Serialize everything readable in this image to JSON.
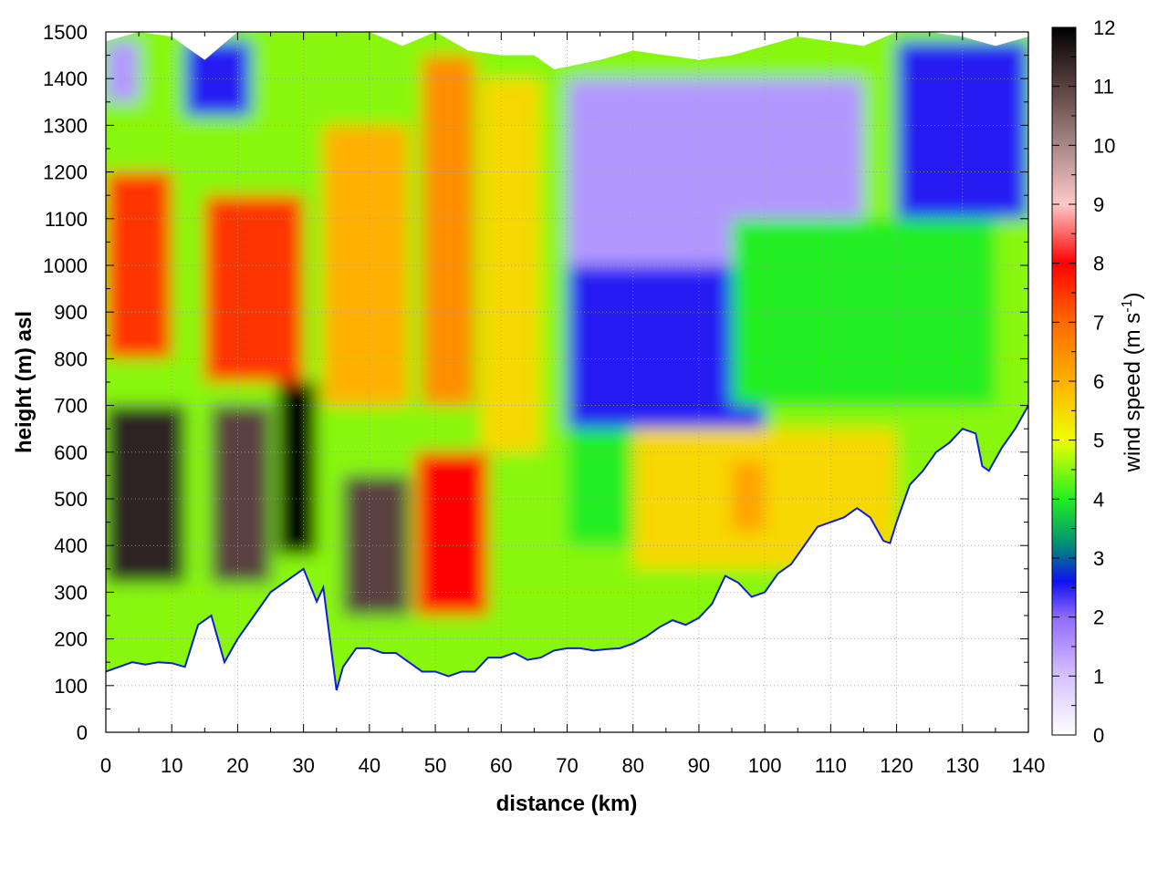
{
  "chart_data": {
    "type": "heatmap",
    "title": "",
    "xlabel": "distance (km)",
    "ylabel": "height (m) asl",
    "xlim": [
      0,
      140
    ],
    "ylim": [
      0,
      1500
    ],
    "x_ticks": [
      0,
      10,
      20,
      30,
      40,
      50,
      60,
      70,
      80,
      90,
      100,
      110,
      120,
      130,
      140
    ],
    "y_ticks": [
      0,
      100,
      200,
      300,
      400,
      500,
      600,
      700,
      800,
      900,
      1000,
      1100,
      1200,
      1300,
      1400,
      1500
    ],
    "grid": true,
    "colorbar": {
      "label": "wind speed (m s",
      "label_exponent": "-1",
      "label_suffix": ")",
      "range": [
        0,
        12
      ],
      "ticks": [
        0,
        1,
        2,
        3,
        4,
        5,
        6,
        7,
        8,
        9,
        10,
        11,
        12
      ],
      "palette": [
        {
          "value": 0,
          "color": "#ffffff"
        },
        {
          "value": 1,
          "color": "#d6c2ff"
        },
        {
          "value": 2,
          "color": "#8f6bff"
        },
        {
          "value": 2.6,
          "color": "#1010f0"
        },
        {
          "value": 3.2,
          "color": "#008a7a"
        },
        {
          "value": 4,
          "color": "#22ee22"
        },
        {
          "value": 5,
          "color": "#eeff00"
        },
        {
          "value": 6,
          "color": "#ffb000"
        },
        {
          "value": 7,
          "color": "#ff6a00"
        },
        {
          "value": 8,
          "color": "#ff0000"
        },
        {
          "value": 9,
          "color": "#ffc8c8"
        },
        {
          "value": 10,
          "color": "#a88888"
        },
        {
          "value": 11,
          "color": "#5a4040"
        },
        {
          "value": 12,
          "color": "#000000"
        }
      ]
    },
    "terrain": {
      "distance_km": [
        0,
        2,
        4,
        6,
        8,
        10,
        12,
        14,
        16,
        18,
        20,
        22,
        25,
        28,
        30,
        32,
        33,
        34,
        35,
        36,
        38,
        40,
        42,
        44,
        46,
        48,
        50,
        52,
        54,
        56,
        58,
        60,
        62,
        64,
        66,
        68,
        70,
        72,
        74,
        76,
        78,
        80,
        82,
        84,
        86,
        88,
        90,
        92,
        94,
        96,
        98,
        100,
        102,
        104,
        106,
        108,
        110,
        112,
        114,
        116,
        118,
        119,
        120,
        122,
        124,
        126,
        128,
        130,
        132,
        133,
        134,
        136,
        138,
        140
      ],
      "height_m": [
        130,
        140,
        150,
        145,
        150,
        148,
        140,
        230,
        250,
        150,
        200,
        240,
        300,
        330,
        350,
        280,
        310,
        200,
        90,
        140,
        180,
        180,
        170,
        170,
        150,
        130,
        130,
        120,
        130,
        130,
        160,
        160,
        170,
        155,
        160,
        175,
        180,
        180,
        175,
        178,
        180,
        190,
        205,
        225,
        240,
        230,
        245,
        275,
        335,
        320,
        290,
        300,
        340,
        360,
        400,
        440,
        450,
        460,
        480,
        460,
        410,
        405,
        450,
        530,
        560,
        600,
        620,
        650,
        640,
        570,
        560,
        610,
        650,
        700
      ]
    },
    "upper_edge": {
      "distance_km": [
        0,
        5,
        10,
        15,
        20,
        25,
        30,
        35,
        40,
        45,
        50,
        55,
        60,
        65,
        68,
        75,
        80,
        85,
        90,
        95,
        100,
        105,
        110,
        115,
        120,
        125,
        130,
        135,
        140
      ],
      "height_m": [
        1480,
        1500,
        1490,
        1440,
        1500,
        1500,
        1500,
        1500,
        1500,
        1470,
        1500,
        1460,
        1450,
        1450,
        1420,
        1440,
        1460,
        1450,
        1440,
        1450,
        1470,
        1490,
        1480,
        1470,
        1500,
        1500,
        1490,
        1470,
        1490
      ]
    },
    "wind_speed_regions": [
      {
        "x_km": [
          0,
          12
        ],
        "height_m": [
          320,
          700
        ],
        "wind_speed": 11.5
      },
      {
        "x_km": [
          16,
          25
        ],
        "height_m": [
          320,
          700
        ],
        "wind_speed": 11.0
      },
      {
        "x_km": [
          26,
          32
        ],
        "height_m": [
          380,
          750
        ],
        "wind_speed": 12.0
      },
      {
        "x_km": [
          36,
          46
        ],
        "height_m": [
          250,
          550
        ],
        "wind_speed": 11.0
      },
      {
        "x_km": [
          0,
          10
        ],
        "height_m": [
          800,
          1200
        ],
        "wind_speed": 7.5
      },
      {
        "x_km": [
          15,
          30
        ],
        "height_m": [
          750,
          1150
        ],
        "wind_speed": 7.5
      },
      {
        "x_km": [
          47,
          58
        ],
        "height_m": [
          250,
          600
        ],
        "wind_speed": 8.0
      },
      {
        "x_km": [
          33,
          46
        ],
        "height_m": [
          700,
          1300
        ],
        "wind_speed": 6.0
      },
      {
        "x_km": [
          48,
          56
        ],
        "height_m": [
          700,
          1450
        ],
        "wind_speed": 6.5
      },
      {
        "x_km": [
          57,
          66
        ],
        "height_m": [
          600,
          1400
        ],
        "wind_speed": 5.5
      },
      {
        "x_km": [
          0,
          5
        ],
        "height_m": [
          1350,
          1480
        ],
        "wind_speed": 1.5
      },
      {
        "x_km": [
          12,
          22
        ],
        "height_m": [
          1320,
          1480
        ],
        "wind_speed": 2.5
      },
      {
        "x_km": [
          70,
          90
        ],
        "height_m": [
          900,
          1400
        ],
        "wind_speed": 1.5
      },
      {
        "x_km": [
          90,
          115
        ],
        "height_m": [
          1000,
          1400
        ],
        "wind_speed": 1.5
      },
      {
        "x_km": [
          70,
          100
        ],
        "height_m": [
          650,
          1000
        ],
        "wind_speed": 2.5
      },
      {
        "x_km": [
          120,
          140
        ],
        "height_m": [
          1100,
          1480
        ],
        "wind_speed": 2.5
      },
      {
        "x_km": [
          70,
          95
        ],
        "height_m": [
          400,
          650
        ],
        "wind_speed": 4.0
      },
      {
        "x_km": [
          95,
          135
        ],
        "height_m": [
          700,
          1100
        ],
        "wind_speed": 4.0
      },
      {
        "x_km": [
          80,
          120
        ],
        "height_m": [
          350,
          650
        ],
        "wind_speed": 5.5
      },
      {
        "x_km": [
          95,
          100
        ],
        "height_m": [
          430,
          580
        ],
        "wind_speed": 6.2
      }
    ]
  }
}
